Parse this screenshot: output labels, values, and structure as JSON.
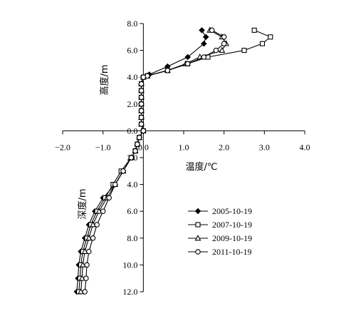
{
  "chart_data": {
    "type": "line",
    "xlabel": "温度/℃",
    "ylabel_top": "高度/m",
    "ylabel_bottom": "深度/m",
    "xlim": [
      -2.0,
      4.0
    ],
    "ylim": [
      -12.0,
      8.0
    ],
    "x_ticks": [
      -2.0,
      -1.0,
      0.0,
      1.0,
      2.0,
      3.0,
      4.0
    ],
    "x_tick_labels": [
      "−2.0",
      "−1.0",
      "0.0",
      "1.0",
      "2.0",
      "3.0",
      "4.0"
    ],
    "y_ticks": [
      8,
      6,
      4,
      2,
      0,
      -2,
      -4,
      -6,
      -8,
      -10,
      -12
    ],
    "y_tick_labels": [
      "8.0",
      "6.0",
      "4.0",
      "2.0",
      "0.0",
      "2.0",
      "4.0",
      "6.0",
      "8.0",
      "10.0",
      "12.0"
    ],
    "grid": false,
    "legend_position": "right-bottom",
    "series": [
      {
        "name": "2005-10-19",
        "marker": "diamond",
        "points": [
          [
            1.45,
            7.5
          ],
          [
            1.55,
            7.0
          ],
          [
            1.5,
            6.5
          ],
          [
            1.1,
            5.5
          ],
          [
            0.6,
            4.8
          ],
          [
            0.15,
            4.2
          ],
          [
            0.0,
            4.0
          ],
          [
            -0.05,
            3.5
          ],
          [
            -0.05,
            3.0
          ],
          [
            -0.05,
            2.5
          ],
          [
            -0.05,
            2.0
          ],
          [
            -0.05,
            1.5
          ],
          [
            -0.05,
            1.0
          ],
          [
            -0.05,
            0.5
          ],
          [
            0.0,
            0.0
          ],
          [
            -0.1,
            -0.5
          ],
          [
            -0.15,
            -1.0
          ],
          [
            -0.2,
            -1.5
          ],
          [
            -0.3,
            -2.0
          ],
          [
            -0.5,
            -3.0
          ],
          [
            -0.7,
            -4.0
          ],
          [
            -1.0,
            -5.0
          ],
          [
            -1.2,
            -6.0
          ],
          [
            -1.35,
            -7.0
          ],
          [
            -1.45,
            -8.0
          ],
          [
            -1.55,
            -9.0
          ],
          [
            -1.6,
            -10.0
          ],
          [
            -1.62,
            -11.0
          ],
          [
            -1.65,
            -12.0
          ]
        ]
      },
      {
        "name": "2007-10-19",
        "marker": "square",
        "points": [
          [
            2.75,
            7.5
          ],
          [
            3.15,
            7.0
          ],
          [
            2.95,
            6.5
          ],
          [
            2.5,
            6.0
          ],
          [
            1.6,
            5.5
          ],
          [
            1.1,
            5.0
          ],
          [
            0.6,
            4.5
          ],
          [
            0.1,
            4.1
          ],
          [
            0.0,
            4.0
          ],
          [
            -0.05,
            3.5
          ],
          [
            -0.05,
            3.0
          ],
          [
            -0.05,
            2.5
          ],
          [
            -0.05,
            2.0
          ],
          [
            -0.05,
            1.5
          ],
          [
            -0.05,
            1.0
          ],
          [
            -0.05,
            0.5
          ],
          [
            0.0,
            0.0
          ],
          [
            -0.1,
            -0.5
          ],
          [
            -0.15,
            -1.0
          ],
          [
            -0.2,
            -1.5
          ],
          [
            -0.3,
            -2.0
          ],
          [
            -0.55,
            -3.0
          ],
          [
            -0.75,
            -4.0
          ],
          [
            -0.95,
            -5.0
          ],
          [
            -1.15,
            -6.0
          ],
          [
            -1.3,
            -7.0
          ],
          [
            -1.4,
            -8.0
          ],
          [
            -1.5,
            -9.0
          ],
          [
            -1.55,
            -10.0
          ],
          [
            -1.57,
            -11.0
          ],
          [
            -1.6,
            -12.0
          ]
        ]
      },
      {
        "name": "2009-10-19",
        "marker": "triangle",
        "points": [
          [
            1.65,
            7.5
          ],
          [
            1.95,
            7.0
          ],
          [
            2.05,
            6.5
          ],
          [
            1.95,
            6.0
          ],
          [
            1.4,
            5.5
          ],
          [
            1.05,
            5.0
          ],
          [
            0.6,
            4.5
          ],
          [
            0.1,
            4.1
          ],
          [
            0.0,
            4.0
          ],
          [
            -0.05,
            3.5
          ],
          [
            -0.05,
            3.0
          ],
          [
            -0.05,
            2.5
          ],
          [
            -0.05,
            2.0
          ],
          [
            -0.05,
            1.5
          ],
          [
            -0.05,
            1.0
          ],
          [
            -0.05,
            0.5
          ],
          [
            0.0,
            0.0
          ],
          [
            -0.1,
            -0.5
          ],
          [
            -0.15,
            -1.0
          ],
          [
            -0.2,
            -1.5
          ],
          [
            -0.3,
            -2.0
          ],
          [
            -0.5,
            -3.0
          ],
          [
            -0.7,
            -4.0
          ],
          [
            -0.9,
            -5.0
          ],
          [
            -1.1,
            -6.0
          ],
          [
            -1.25,
            -7.0
          ],
          [
            -1.35,
            -8.0
          ],
          [
            -1.45,
            -9.0
          ],
          [
            -1.5,
            -10.0
          ],
          [
            -1.52,
            -11.0
          ],
          [
            -1.55,
            -12.0
          ]
        ]
      },
      {
        "name": "2011-10-19",
        "marker": "circle",
        "points": [
          [
            1.7,
            7.5
          ],
          [
            2.0,
            7.0
          ],
          [
            2.0,
            6.5
          ],
          [
            1.8,
            6.0
          ],
          [
            1.5,
            5.5
          ],
          [
            1.1,
            5.0
          ],
          [
            0.6,
            4.5
          ],
          [
            0.1,
            4.1
          ],
          [
            0.0,
            4.0
          ],
          [
            -0.05,
            3.5
          ],
          [
            -0.05,
            3.0
          ],
          [
            -0.05,
            2.5
          ],
          [
            -0.05,
            2.0
          ],
          [
            -0.05,
            1.5
          ],
          [
            -0.05,
            1.0
          ],
          [
            -0.05,
            0.5
          ],
          [
            0.0,
            0.0
          ],
          [
            -0.1,
            -0.5
          ],
          [
            -0.15,
            -1.0
          ],
          [
            -0.2,
            -1.5
          ],
          [
            -0.3,
            -2.0
          ],
          [
            -0.5,
            -3.0
          ],
          [
            -0.7,
            -4.0
          ],
          [
            -0.85,
            -5.0
          ],
          [
            -1.0,
            -6.0
          ],
          [
            -1.15,
            -7.0
          ],
          [
            -1.25,
            -8.0
          ],
          [
            -1.35,
            -9.0
          ],
          [
            -1.4,
            -10.0
          ],
          [
            -1.42,
            -11.0
          ],
          [
            -1.45,
            -12.0
          ]
        ]
      }
    ]
  }
}
